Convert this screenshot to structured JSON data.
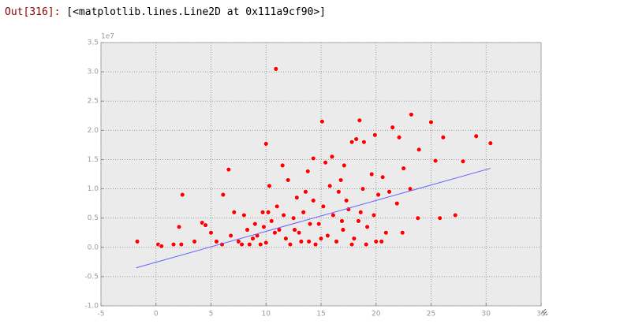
{
  "prompt": "Out[316]:",
  "output": "[<matplotlib.lines.Line2D at 0x111a9cf90>]",
  "chart_data": {
    "type": "scatter",
    "offset_label": "1e7",
    "xlim": [
      -5,
      35
    ],
    "xticks": [
      -5,
      0,
      5,
      10,
      15,
      20,
      25,
      30,
      35
    ],
    "ylim": [
      -1.0,
      3.5
    ],
    "yticks": [
      {
        "value": -1.0,
        "label": "-1.0"
      },
      -0.5,
      {
        "value": 0.0,
        "label": "0.0"
      },
      0.5,
      {
        "value": 1.0,
        "label": "1.0"
      },
      1.5,
      {
        "value": 2.0,
        "label": "2.0"
      },
      2.5,
      {
        "value": 3.0,
        "label": "3.0"
      },
      3.5
    ],
    "grid": true,
    "series": [
      {
        "type": "scatter",
        "color": "#ff0000",
        "x": [
          -1.7,
          0.2,
          0.5,
          2.1,
          2.3,
          2.4,
          4.2,
          4.5,
          6.1,
          6.6,
          10.0,
          10.9,
          11.5,
          15.1,
          18.5,
          21.5,
          23.2,
          25.0,
          26.1,
          29.1,
          30.4,
          27.9,
          27.2,
          25.8,
          23.8,
          22.4,
          20.5,
          20.0,
          25.4,
          23.9,
          22.1,
          19.9,
          18.9,
          17.8,
          18.2,
          17.1,
          16.0,
          15.4,
          14.3,
          13.8,
          12.0,
          10.3,
          9.7,
          8.0,
          7.1,
          5.0,
          3.5,
          1.6,
          7.5,
          8.5,
          9.2,
          9.8,
          10.5,
          11.2,
          11.8,
          12.5,
          13.0,
          13.4,
          13.9,
          14.3,
          14.8,
          15.2,
          15.6,
          16.1,
          16.6,
          17.0,
          17.5,
          18.0,
          18.4,
          18.8,
          19.2,
          19.6,
          20.2,
          20.6,
          21.2,
          21.9,
          22.5,
          23.1,
          12.2,
          10.0,
          9.0,
          8.3,
          6.8,
          6.0,
          5.5,
          11.0,
          12.8,
          13.6,
          14.0,
          15.8,
          16.8,
          17.3,
          18.6,
          19.1,
          11.6,
          10.8,
          9.5,
          14.5,
          16.4,
          17.8,
          13.2,
          12.6,
          15.0,
          16.9,
          19.8,
          20.9,
          8.8,
          7.8,
          10.2
        ],
        "values": [
          0.1,
          0.05,
          0.02,
          0.35,
          0.05,
          0.9,
          0.42,
          0.38,
          0.9,
          1.33,
          1.77,
          3.05,
          1.4,
          2.15,
          2.17,
          2.05,
          2.27,
          2.14,
          1.88,
          1.9,
          1.78,
          1.47,
          0.55,
          0.5,
          0.5,
          0.25,
          0.1,
          0.1,
          1.48,
          1.67,
          1.88,
          1.92,
          1.8,
          1.8,
          1.85,
          1.4,
          1.55,
          1.45,
          1.52,
          1.3,
          1.15,
          1.05,
          0.6,
          0.55,
          0.6,
          0.25,
          0.1,
          0.05,
          0.1,
          0.05,
          0.2,
          0.35,
          0.45,
          0.3,
          0.15,
          0.5,
          0.25,
          0.6,
          0.1,
          0.8,
          0.4,
          0.7,
          0.2,
          0.55,
          0.95,
          0.3,
          0.65,
          0.15,
          0.45,
          1.0,
          0.35,
          1.25,
          0.9,
          1.2,
          0.95,
          0.75,
          1.35,
          1.0,
          0.05,
          0.08,
          0.4,
          0.3,
          0.2,
          0.05,
          0.1,
          0.7,
          0.85,
          0.95,
          0.4,
          1.05,
          1.15,
          0.8,
          0.6,
          0.05,
          0.55,
          0.25,
          0.05,
          0.05,
          0.1,
          0.05,
          0.1,
          0.3,
          0.15,
          0.45,
          0.55,
          0.25,
          0.15,
          0.05,
          0.6
        ]
      },
      {
        "type": "line",
        "color": "#6464ff",
        "x": [
          -1.8,
          30.4
        ],
        "values": [
          -0.35,
          1.35
        ]
      }
    ]
  }
}
